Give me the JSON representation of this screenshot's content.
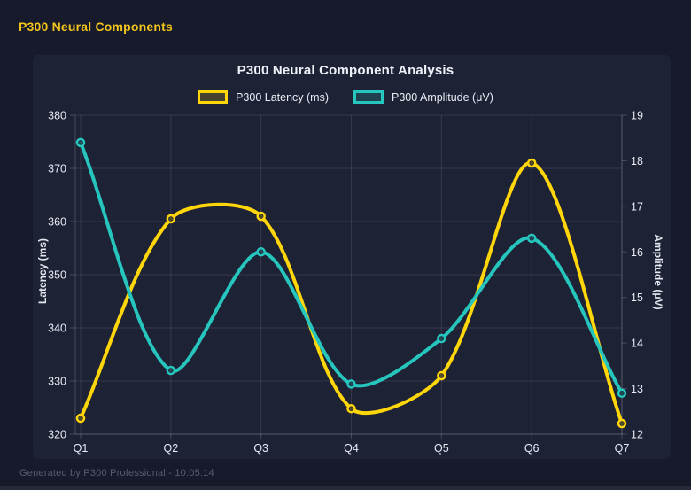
{
  "window": {
    "header": "P300 Neural Components",
    "footer": "Generated by P300 Professional - 10:05:14"
  },
  "colors": {
    "page_bg": "#171a2a",
    "card_bg": "#1e2235",
    "header_gold": "#f2c51d",
    "grid": "rgba(255,255,255,0.10)",
    "axis_border": "rgba(255,255,255,0.18)",
    "tick_text": "#e8ebf4",
    "title_text": "#eff2f9",
    "footer_text": "#575c6f"
  },
  "chart_data": {
    "type": "line",
    "title": "P300 Neural Component Analysis",
    "categories": [
      "Q1",
      "Q2",
      "Q3",
      "Q4",
      "Q5",
      "Q6",
      "Q7"
    ],
    "series": [
      {
        "name": "P300 Latency (ms)",
        "axis": "left",
        "color": "#ffd60a",
        "values": [
          323,
          360.5,
          361,
          324.8,
          331,
          371,
          322
        ]
      },
      {
        "name": "P300 Amplitude (μV)",
        "axis": "right",
        "color": "#26c6be",
        "values": [
          18.4,
          13.4,
          16,
          13.1,
          14.1,
          16.3,
          12.9
        ]
      }
    ],
    "left_axis": {
      "label": "Latency (ms)",
      "min": 320,
      "max": 380,
      "step": 10
    },
    "right_axis": {
      "label": "Amplitude (μV)",
      "min": 12,
      "max": 19,
      "step": 1
    },
    "grid": true,
    "legend_position": "top",
    "line_smoothing": "curved"
  }
}
